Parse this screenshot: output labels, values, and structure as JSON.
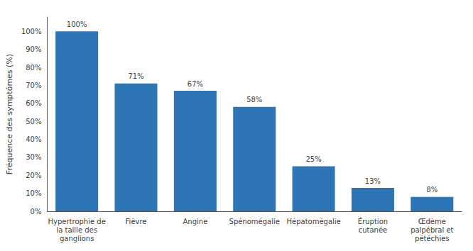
{
  "chart_data": {
    "type": "bar",
    "categories": [
      "Hypertrophie de\nla taille des\nganglions",
      "Fièvre",
      "Angine",
      "Spénomégalie",
      "Hépatomégalie",
      "Éruption\ncutanée",
      "Œdème\npalpébral et\npétéchies"
    ],
    "values": [
      100,
      71,
      67,
      58,
      25,
      13,
      8
    ],
    "value_labels": [
      "100%",
      "71%",
      "67%",
      "58%",
      "25%",
      "13%",
      "8%"
    ],
    "data_labels": true,
    "color": "#2E75B6",
    "ylabel": "Fréquence des symptômes (%)",
    "ylim": [
      0,
      108
    ],
    "yticks": [
      {
        "value": 0,
        "label": "0%"
      },
      {
        "value": 10,
        "label": "10%"
      },
      {
        "value": 20,
        "label": "20%"
      },
      {
        "value": 30,
        "label": "30%"
      },
      {
        "value": 40,
        "label": "40%"
      },
      {
        "value": 50,
        "label": "50%"
      },
      {
        "value": 60,
        "label": "60%"
      },
      {
        "value": 70,
        "label": "70%"
      },
      {
        "value": 80,
        "label": "80%"
      },
      {
        "value": 90,
        "label": "90%"
      },
      {
        "value": 100,
        "label": "100%"
      }
    ],
    "grid": false
  }
}
